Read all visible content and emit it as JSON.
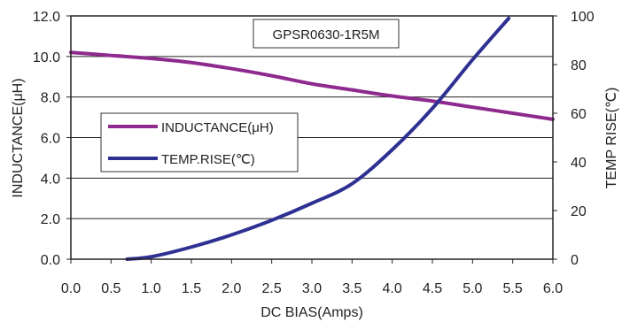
{
  "chart_data": {
    "type": "line",
    "title": "GPSR0630-1R5M",
    "xlabel": "DC BIAS(Amps)",
    "ylabel_left": "INDUCTANCE(μH)",
    "ylabel_right": "TEMP RISE(℃)",
    "xlim": [
      0.0,
      6.0
    ],
    "ylim_left": [
      0.0,
      12.0
    ],
    "ylim_right": [
      0,
      100
    ],
    "x_ticks": [
      "0.0",
      "0.5",
      "1.0",
      "1.5",
      "2.0",
      "2.5",
      "3.0",
      "3.5",
      "4.0",
      "4.5",
      "5.0",
      "5.5",
      "6.0"
    ],
    "y_left_ticks": [
      "0.0",
      "2.0",
      "4.0",
      "6.0",
      "8.0",
      "10.0",
      "12.0"
    ],
    "y_right_ticks": [
      "0",
      "20",
      "40",
      "60",
      "80",
      "100"
    ],
    "grid": "horizontal",
    "legend": {
      "placement": "center-left",
      "entries": [
        {
          "label": "INDUCTANCE(μH)",
          "color": "#8e2a8e"
        },
        {
          "label": "TEMP.RISE(℃)",
          "color": "#2e3192"
        }
      ]
    },
    "series": [
      {
        "name": "INDUCTANCE(μH)",
        "axis": "left",
        "color": "#8e2a8e",
        "x": [
          0.0,
          0.5,
          1.0,
          1.5,
          2.0,
          2.5,
          3.0,
          3.5,
          4.0,
          4.5,
          5.0,
          5.5,
          6.0
        ],
        "y": [
          10.2,
          10.05,
          9.9,
          9.7,
          9.4,
          9.05,
          8.65,
          8.35,
          8.05,
          7.8,
          7.5,
          7.2,
          6.9
        ]
      },
      {
        "name": "TEMP.RISE(℃)",
        "axis": "right",
        "color": "#2e3192",
        "x": [
          0.7,
          1.0,
          1.5,
          2.0,
          2.5,
          3.0,
          3.5,
          4.0,
          4.5,
          5.0,
          5.45
        ],
        "y": [
          0,
          1,
          5,
          10,
          16,
          23,
          31,
          45,
          62,
          82,
          99
        ]
      }
    ]
  }
}
